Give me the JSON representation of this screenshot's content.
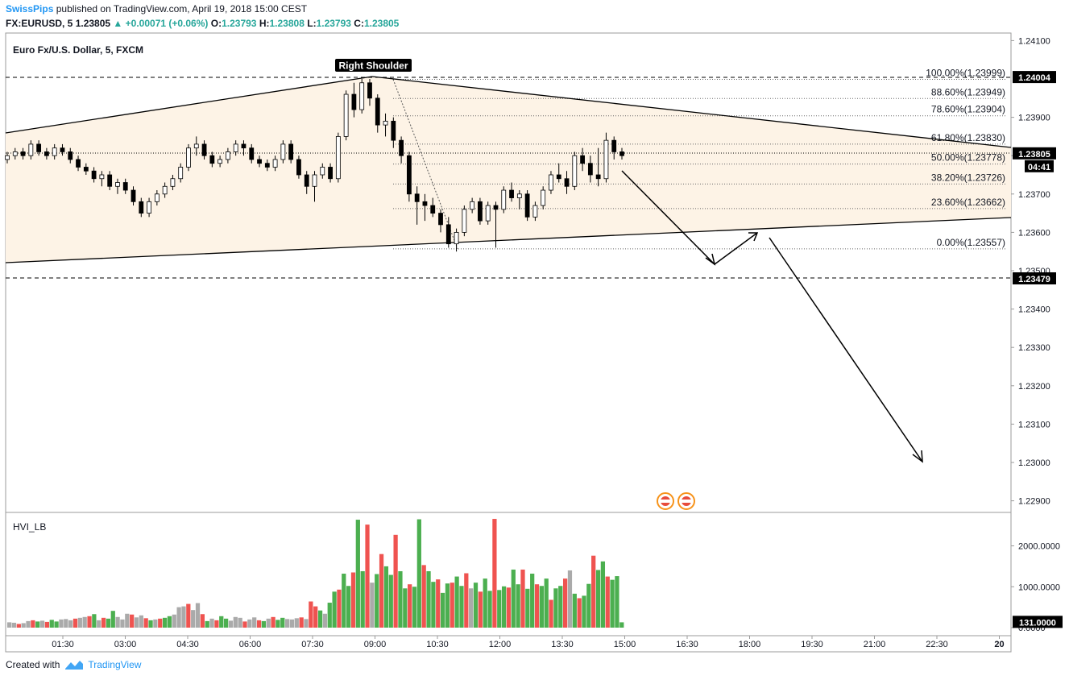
{
  "header": {
    "author": "SwissPips",
    "published_text": "published on TradingView.com, April 19, 2018 15:00 CEST",
    "symbol": "FX:EURUSD, 5",
    "last": "1.23805",
    "change": "+0.00071 (+0.06%)",
    "o_label": "O:",
    "o_value": "1.23793",
    "h_label": "H:",
    "h_value": "1.23808",
    "l_label": "L:",
    "l_value": "1.23793",
    "c_label": "C:",
    "c_value": "1.23805"
  },
  "footer": {
    "created_with": "Created with",
    "brand": "TradingView"
  },
  "colors": {
    "up": "#4caf50",
    "down": "#ef5350",
    "neutral": "#aaaaaa",
    "triangle_fill": "#fdf3e6",
    "accent": "#2196f3"
  },
  "chart_data": [
    {
      "type": "candlestick",
      "title": "Euro Fx/U.S. Dollar, 5, FXCM",
      "ylim": [
        1.2285,
        1.2415
      ],
      "y_ticks": [
        "1.24100",
        "1.23900",
        "1.23800",
        "1.23700",
        "1.23600",
        "1.23500",
        "1.23400",
        "1.23300",
        "1.23200",
        "1.23100",
        "1.23000",
        "1.22900"
      ],
      "x_ticks": [
        "01:30",
        "03:00",
        "04:30",
        "06:00",
        "07:30",
        "09:00",
        "10:30",
        "12:00",
        "13:30",
        "15:00",
        "16:30",
        "18:00",
        "19:30",
        "21:00",
        "22:30",
        "20"
      ],
      "price_badges": [
        {
          "value": 1.24004,
          "text": "1.24004"
        },
        {
          "value": 1.23805,
          "text": "1.23805"
        },
        {
          "value": 1.23479,
          "text": "1.23479"
        }
      ],
      "countdown": "04:41",
      "annotation": "Right Shoulder",
      "fibonacci": [
        {
          "label": "100.00%(1.23999)",
          "value": 1.23999
        },
        {
          "label": "88.60%(1.23949)",
          "value": 1.23949
        },
        {
          "label": "78.60%(1.23904)",
          "value": 1.23904
        },
        {
          "label": "61.80%(1.23830)",
          "value": 1.2383
        },
        {
          "label": "50.00%(1.23778)",
          "value": 1.23778
        },
        {
          "label": "38.20%(1.23726)",
          "value": 1.23726
        },
        {
          "label": "23.60%(1.23662)",
          "value": 1.23662
        },
        {
          "label": "0.00%(1.23557)",
          "value": 1.23557
        }
      ],
      "candles": [
        [
          1.2379,
          1.2381,
          1.2378,
          1.238
        ],
        [
          1.238,
          1.2382,
          1.2379,
          1.2381
        ],
        [
          1.2381,
          1.2382,
          1.2379,
          1.238
        ],
        [
          1.238,
          1.2384,
          1.2379,
          1.2383
        ],
        [
          1.2383,
          1.2384,
          1.238,
          1.2381
        ],
        [
          1.2381,
          1.2382,
          1.2379,
          1.238
        ],
        [
          1.238,
          1.2383,
          1.2379,
          1.2382
        ],
        [
          1.2382,
          1.2383,
          1.238,
          1.2381
        ],
        [
          1.2381,
          1.2382,
          1.2378,
          1.2379
        ],
        [
          1.2379,
          1.238,
          1.2376,
          1.2377
        ],
        [
          1.2377,
          1.2378,
          1.2375,
          1.2376
        ],
        [
          1.2376,
          1.2377,
          1.2373,
          1.2374
        ],
        [
          1.2374,
          1.2376,
          1.2372,
          1.2375
        ],
        [
          1.2375,
          1.2376,
          1.2371,
          1.2372
        ],
        [
          1.2372,
          1.2374,
          1.237,
          1.2373
        ],
        [
          1.2373,
          1.2374,
          1.237,
          1.2371
        ],
        [
          1.2371,
          1.2372,
          1.2367,
          1.2368
        ],
        [
          1.2368,
          1.2369,
          1.2364,
          1.2365
        ],
        [
          1.2365,
          1.2369,
          1.2364,
          1.2368
        ],
        [
          1.2368,
          1.2371,
          1.2367,
          1.237
        ],
        [
          1.237,
          1.2373,
          1.2369,
          1.2372
        ],
        [
          1.2372,
          1.2375,
          1.2371,
          1.2374
        ],
        [
          1.2374,
          1.2378,
          1.2373,
          1.2377
        ],
        [
          1.2377,
          1.2383,
          1.2376,
          1.2382
        ],
        [
          1.2382,
          1.2385,
          1.238,
          1.2383
        ],
        [
          1.2383,
          1.2384,
          1.2379,
          1.238
        ],
        [
          1.238,
          1.2381,
          1.2377,
          1.2378
        ],
        [
          1.2378,
          1.238,
          1.2377,
          1.2379
        ],
        [
          1.2379,
          1.2382,
          1.2378,
          1.2381
        ],
        [
          1.2381,
          1.2384,
          1.238,
          1.2383
        ],
        [
          1.2383,
          1.2384,
          1.238,
          1.2382
        ],
        [
          1.2382,
          1.2383,
          1.2378,
          1.2379
        ],
        [
          1.2379,
          1.238,
          1.2377,
          1.2378
        ],
        [
          1.2378,
          1.2379,
          1.2376,
          1.2377
        ],
        [
          1.2377,
          1.238,
          1.2376,
          1.2379
        ],
        [
          1.2379,
          1.2384,
          1.2378,
          1.2383
        ],
        [
          1.2383,
          1.2384,
          1.2378,
          1.2379
        ],
        [
          1.2379,
          1.238,
          1.2374,
          1.2375
        ],
        [
          1.2375,
          1.2376,
          1.237,
          1.2372
        ],
        [
          1.2372,
          1.2376,
          1.2368,
          1.2375
        ],
        [
          1.2375,
          1.2378,
          1.2374,
          1.2377
        ],
        [
          1.2377,
          1.2378,
          1.2373,
          1.2374
        ],
        [
          1.2374,
          1.2386,
          1.2373,
          1.2385
        ],
        [
          1.2385,
          1.2397,
          1.2384,
          1.2396
        ],
        [
          1.2396,
          1.2399,
          1.239,
          1.2392
        ],
        [
          1.2392,
          1.24,
          1.2391,
          1.2399
        ],
        [
          1.2399,
          1.24,
          1.2393,
          1.2395
        ],
        [
          1.2395,
          1.2396,
          1.2386,
          1.2388
        ],
        [
          1.2388,
          1.2391,
          1.2385,
          1.2389
        ],
        [
          1.2389,
          1.239,
          1.2382,
          1.2384
        ],
        [
          1.2384,
          1.2385,
          1.2378,
          1.238
        ],
        [
          1.238,
          1.2381,
          1.2368,
          1.237
        ],
        [
          1.237,
          1.2372,
          1.2362,
          1.2368
        ],
        [
          1.2368,
          1.237,
          1.2363,
          1.2367
        ],
        [
          1.2367,
          1.2369,
          1.2364,
          1.2365
        ],
        [
          1.2365,
          1.2366,
          1.236,
          1.2362
        ],
        [
          1.2362,
          1.2364,
          1.2356,
          1.2357
        ],
        [
          1.2357,
          1.2361,
          1.2355,
          1.236
        ],
        [
          1.236,
          1.2367,
          1.2359,
          1.2366
        ],
        [
          1.2366,
          1.2369,
          1.2365,
          1.2368
        ],
        [
          1.2368,
          1.2369,
          1.2362,
          1.2363
        ],
        [
          1.2363,
          1.2368,
          1.2362,
          1.2367
        ],
        [
          1.2367,
          1.2368,
          1.2356,
          1.2366
        ],
        [
          1.2366,
          1.2372,
          1.2365,
          1.2371
        ],
        [
          1.2371,
          1.2373,
          1.2368,
          1.2369
        ],
        [
          1.2369,
          1.2371,
          1.2366,
          1.237
        ],
        [
          1.237,
          1.2371,
          1.2363,
          1.2364
        ],
        [
          1.2364,
          1.2368,
          1.2363,
          1.2367
        ],
        [
          1.2367,
          1.2372,
          1.2366,
          1.2371
        ],
        [
          1.2371,
          1.2376,
          1.237,
          1.2375
        ],
        [
          1.2375,
          1.2378,
          1.2373,
          1.2374
        ],
        [
          1.2374,
          1.2376,
          1.237,
          1.2372
        ],
        [
          1.2372,
          1.2381,
          1.2371,
          1.238
        ],
        [
          1.238,
          1.2382,
          1.2376,
          1.2378
        ],
        [
          1.2378,
          1.238,
          1.2373,
          1.2375
        ],
        [
          1.2375,
          1.2382,
          1.2372,
          1.2374
        ],
        [
          1.2374,
          1.2386,
          1.2373,
          1.2384
        ],
        [
          1.2384,
          1.2385,
          1.2379,
          1.2381
        ],
        [
          1.2381,
          1.2382,
          1.2379,
          1.238
        ]
      ]
    },
    {
      "type": "bar",
      "title": "HVI_LB",
      "ylim": [
        0,
        2700
      ],
      "y_ticks": [
        "2000.0000",
        "1000.0000",
        "0.0000"
      ],
      "last_badge": "131.0000",
      "values": [
        130,
        120,
        90,
        110,
        160,
        180,
        150,
        170,
        140,
        190,
        150,
        200,
        210,
        180,
        220,
        240,
        260,
        280,
        330,
        180,
        240,
        220,
        410,
        260,
        200,
        340,
        320,
        250,
        300,
        230,
        180,
        200,
        220,
        240,
        280,
        320,
        500,
        520,
        580,
        430,
        600,
        330,
        160,
        220,
        180,
        280,
        220,
        170,
        260,
        240,
        150,
        200,
        250,
        180,
        160,
        220,
        260,
        190,
        240,
        210,
        200,
        230,
        250,
        210,
        640,
        520,
        420,
        340,
        610,
        880,
        930,
        1320,
        1020,
        1350,
        2640,
        1380,
        2520,
        1100,
        1310,
        1800,
        1500,
        1290,
        2270,
        1380,
        960,
        1060,
        1000,
        2650,
        1530,
        1380,
        1120,
        1180,
        850,
        1080,
        1100,
        1250,
        1020,
        1330,
        960,
        1100,
        880,
        1200,
        900,
        2660,
        920,
        1010,
        980,
        1420,
        1060,
        1420,
        950,
        1320,
        1060,
        1020,
        1200,
        680,
        960,
        1020,
        1200,
        1400,
        830,
        720,
        780,
        1070,
        1760,
        1410,
        1620,
        1250,
        1170,
        1260,
        130
      ]
    }
  ]
}
